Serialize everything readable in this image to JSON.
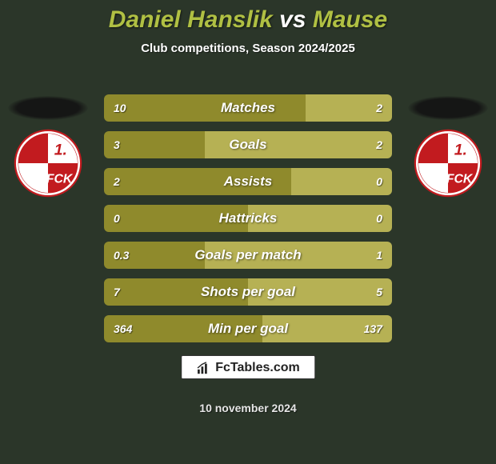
{
  "background_color": "#2b3629",
  "title": {
    "player1": "Daniel Hanslik",
    "vs": "vs",
    "player2": "Mause",
    "player1_color": "#b0c043",
    "vs_color": "#ffffff",
    "player2_color": "#b0c043"
  },
  "subtitle": "Club competitions, Season 2024/2025",
  "club_left": {
    "crest_bg": "#c21b1f",
    "crest_inner": "#ffffff",
    "crest_text_top": "1.",
    "crest_text_bottom": "FCK"
  },
  "club_right": {
    "crest_bg": "#c21b1f",
    "crest_inner": "#ffffff",
    "crest_text_top": "1.",
    "crest_text_bottom": "FCK"
  },
  "bars": {
    "left_color": "#8f8a2c",
    "right_color": "#b6b154",
    "row_radius": 6,
    "stats": [
      {
        "label": "Matches",
        "left_val": "10",
        "right_val": "2",
        "left_pct": 70
      },
      {
        "label": "Goals",
        "left_val": "3",
        "right_val": "2",
        "left_pct": 35
      },
      {
        "label": "Assists",
        "left_val": "2",
        "right_val": "0",
        "left_pct": 65
      },
      {
        "label": "Hattricks",
        "left_val": "0",
        "right_val": "0",
        "left_pct": 50
      },
      {
        "label": "Goals per match",
        "left_val": "0.3",
        "right_val": "1",
        "left_pct": 35
      },
      {
        "label": "Shots per goal",
        "left_val": "7",
        "right_val": "5",
        "left_pct": 50
      },
      {
        "label": "Min per goal",
        "left_val": "364",
        "right_val": "137",
        "left_pct": 55
      }
    ]
  },
  "brand": {
    "text": "FcTables.com",
    "icon_color": "#222222"
  },
  "date_text": "10 november 2024"
}
